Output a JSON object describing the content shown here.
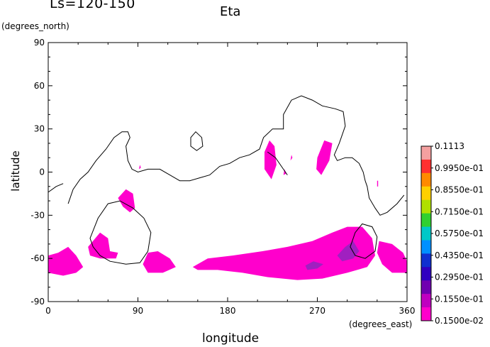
{
  "header": {
    "season_label": "Ls=120-150",
    "variable_title": "Eta"
  },
  "chart_data": {
    "type": "contour-map",
    "title": "Eta",
    "subtitle": "Ls=120-150",
    "xlabel": "longitude",
    "ylabel": "latitude",
    "x_unit": "(degrees_east)",
    "y_unit": "(degrees_north)",
    "xlim": [
      0,
      360
    ],
    "ylim": [
      -90,
      90
    ],
    "x_ticks": [
      0,
      90,
      180,
      270,
      360
    ],
    "y_ticks": [
      -90,
      -60,
      -30,
      0,
      30,
      60,
      90
    ],
    "legend": {
      "placement": "right",
      "labels": [
        "0.1113",
        "0.9950e-01",
        "0.8550e-01",
        "0.7150e-01",
        "0.5750e-01",
        "0.4350e-01",
        "0.2950e-01",
        "0.1550e-01",
        "0.1500e-02"
      ],
      "colors": [
        "#f4a0a0",
        "#ff3030",
        "#ff8a00",
        "#ffd000",
        "#b0e000",
        "#30d030",
        "#00c8c8",
        "#0090ff",
        "#1030d0",
        "#3000c0",
        "#7000b0",
        "#c000c0",
        "#ff00cc"
      ]
    },
    "fill_color": "#ff00cc",
    "high_color": "#a020c0",
    "contour_line_color": "#000000",
    "shaded_regions": [
      {
        "name": "south-polar-band",
        "points": [
          [
            0,
            -58
          ],
          [
            10,
            -56
          ],
          [
            20,
            -52
          ],
          [
            28,
            -58
          ],
          [
            35,
            -66
          ],
          [
            28,
            -70
          ],
          [
            15,
            -72
          ],
          [
            0,
            -70
          ]
        ]
      },
      {
        "name": "south-patch-50",
        "points": [
          [
            40,
            -52
          ],
          [
            52,
            -42
          ],
          [
            60,
            -46
          ],
          [
            62,
            -55
          ],
          [
            70,
            -56
          ],
          [
            68,
            -60
          ],
          [
            52,
            -60
          ],
          [
            42,
            -58
          ]
        ]
      },
      {
        "name": "south-patch-100",
        "points": [
          [
            95,
            -64
          ],
          [
            100,
            -56
          ],
          [
            110,
            -55
          ],
          [
            122,
            -60
          ],
          [
            128,
            -66
          ],
          [
            115,
            -70
          ],
          [
            100,
            -70
          ]
        ]
      },
      {
        "name": "south-main-band",
        "points": [
          [
            145,
            -66
          ],
          [
            160,
            -60
          ],
          [
            185,
            -58
          ],
          [
            215,
            -55
          ],
          [
            240,
            -52
          ],
          [
            265,
            -48
          ],
          [
            285,
            -42
          ],
          [
            300,
            -38
          ],
          [
            315,
            -38
          ],
          [
            325,
            -46
          ],
          [
            328,
            -58
          ],
          [
            320,
            -66
          ],
          [
            300,
            -70
          ],
          [
            275,
            -74
          ],
          [
            250,
            -75
          ],
          [
            220,
            -73
          ],
          [
            195,
            -70
          ],
          [
            170,
            -68
          ],
          [
            150,
            -68
          ]
        ]
      },
      {
        "name": "south-patch-340",
        "points": [
          [
            332,
            -48
          ],
          [
            345,
            -50
          ],
          [
            356,
            -56
          ],
          [
            360,
            -62
          ],
          [
            360,
            -70
          ],
          [
            345,
            -70
          ],
          [
            335,
            -64
          ],
          [
            330,
            -56
          ]
        ]
      },
      {
        "name": "patch-75-south",
        "points": [
          [
            70,
            -18
          ],
          [
            78,
            -12
          ],
          [
            85,
            -15
          ],
          [
            87,
            -25
          ],
          [
            82,
            -28
          ],
          [
            75,
            -24
          ]
        ]
      },
      {
        "name": "patch-220",
        "points": [
          [
            217,
            14
          ],
          [
            222,
            22
          ],
          [
            227,
            18
          ],
          [
            229,
            5
          ],
          [
            224,
            -5
          ],
          [
            217,
            2
          ]
        ]
      },
      {
        "name": "patch-240",
        "points": [
          [
            236,
            -2
          ],
          [
            239,
            -1
          ],
          [
            237,
            2
          ]
        ]
      },
      {
        "name": "patch-245",
        "points": [
          [
            243,
            8
          ],
          [
            245,
            10
          ],
          [
            244,
            12
          ]
        ]
      },
      {
        "name": "patch-275",
        "points": [
          [
            270,
            10
          ],
          [
            277,
            22
          ],
          [
            285,
            20
          ],
          [
            282,
            8
          ],
          [
            274,
            -2
          ],
          [
            269,
            2
          ]
        ]
      },
      {
        "name": "patch-90",
        "points": [
          [
            91,
            2
          ],
          [
            93,
            3
          ],
          [
            92,
            5
          ]
        ]
      },
      {
        "name": "patch-330",
        "points": [
          [
            330,
            -6
          ],
          [
            331,
            -6
          ],
          [
            331,
            -10
          ],
          [
            330,
            -10
          ]
        ]
      }
    ],
    "high_regions": [
      {
        "name": "high-300",
        "points": [
          [
            290,
            -58
          ],
          [
            298,
            -52
          ],
          [
            306,
            -48
          ],
          [
            312,
            -55
          ],
          [
            306,
            -60
          ],
          [
            295,
            -62
          ]
        ]
      },
      {
        "name": "high-255",
        "points": [
          [
            258,
            -65
          ],
          [
            266,
            -62
          ],
          [
            276,
            -64
          ],
          [
            270,
            -67
          ],
          [
            260,
            -68
          ]
        ]
      }
    ],
    "contour_lines": [
      {
        "name": "equatorial-coastline",
        "points": [
          [
            20,
            -22
          ],
          [
            25,
            -12
          ],
          [
            32,
            -5
          ],
          [
            40,
            0
          ],
          [
            48,
            8
          ],
          [
            58,
            16
          ],
          [
            66,
            24
          ],
          [
            74,
            28
          ],
          [
            80,
            28
          ],
          [
            82,
            24
          ],
          [
            78,
            18
          ],
          [
            80,
            8
          ],
          [
            84,
            2
          ],
          [
            90,
            0
          ],
          [
            100,
            2
          ],
          [
            112,
            2
          ],
          [
            122,
            -2
          ],
          [
            132,
            -6
          ],
          [
            142,
            -6
          ],
          [
            152,
            -4
          ],
          [
            162,
            -2
          ],
          [
            172,
            4
          ],
          [
            182,
            6
          ],
          [
            192,
            10
          ],
          [
            202,
            12
          ],
          [
            212,
            16
          ],
          [
            216,
            24
          ],
          [
            225,
            30
          ],
          [
            236,
            30
          ],
          [
            236,
            40
          ],
          [
            244,
            50
          ],
          [
            254,
            53
          ],
          [
            265,
            50
          ],
          [
            275,
            46
          ],
          [
            288,
            44
          ],
          [
            296,
            42
          ],
          [
            298,
            32
          ],
          [
            292,
            20
          ],
          [
            287,
            12
          ],
          [
            290,
            8
          ],
          [
            298,
            10
          ],
          [
            305,
            10
          ],
          [
            312,
            6
          ],
          [
            316,
            0
          ],
          [
            318,
            -6
          ],
          [
            320,
            -10
          ],
          [
            322,
            -18
          ],
          [
            328,
            -25
          ],
          [
            333,
            -30
          ],
          [
            340,
            -28
          ],
          [
            350,
            -22
          ],
          [
            357,
            -16
          ]
        ]
      },
      {
        "name": "equatorial-coastline-left",
        "points": [
          [
            0,
            -14
          ],
          [
            8,
            -10
          ],
          [
            15,
            -8
          ]
        ]
      },
      {
        "name": "coast-tail",
        "points": [
          [
            240,
            -2
          ],
          [
            228,
            10
          ],
          [
            220,
            14
          ]
        ]
      },
      {
        "name": "islet-145",
        "points": [
          [
            148,
            28
          ],
          [
            154,
            24
          ],
          [
            155,
            18
          ],
          [
            149,
            15
          ],
          [
            143,
            18
          ],
          [
            143,
            24
          ]
        ]
      },
      {
        "name": "south-circle-65",
        "points": [
          [
            42,
            -46
          ],
          [
            50,
            -32
          ],
          [
            60,
            -22
          ],
          [
            72,
            -20
          ],
          [
            85,
            -25
          ],
          [
            96,
            -32
          ],
          [
            103,
            -42
          ],
          [
            100,
            -55
          ],
          [
            92,
            -63
          ],
          [
            78,
            -64
          ],
          [
            62,
            -62
          ],
          [
            52,
            -58
          ],
          [
            45,
            -52
          ]
        ]
      },
      {
        "name": "south-circle-320",
        "points": [
          [
            303,
            -52
          ],
          [
            308,
            -42
          ],
          [
            315,
            -36
          ],
          [
            325,
            -38
          ],
          [
            330,
            -45
          ],
          [
            328,
            -55
          ],
          [
            318,
            -60
          ],
          [
            308,
            -58
          ]
        ]
      }
    ]
  }
}
